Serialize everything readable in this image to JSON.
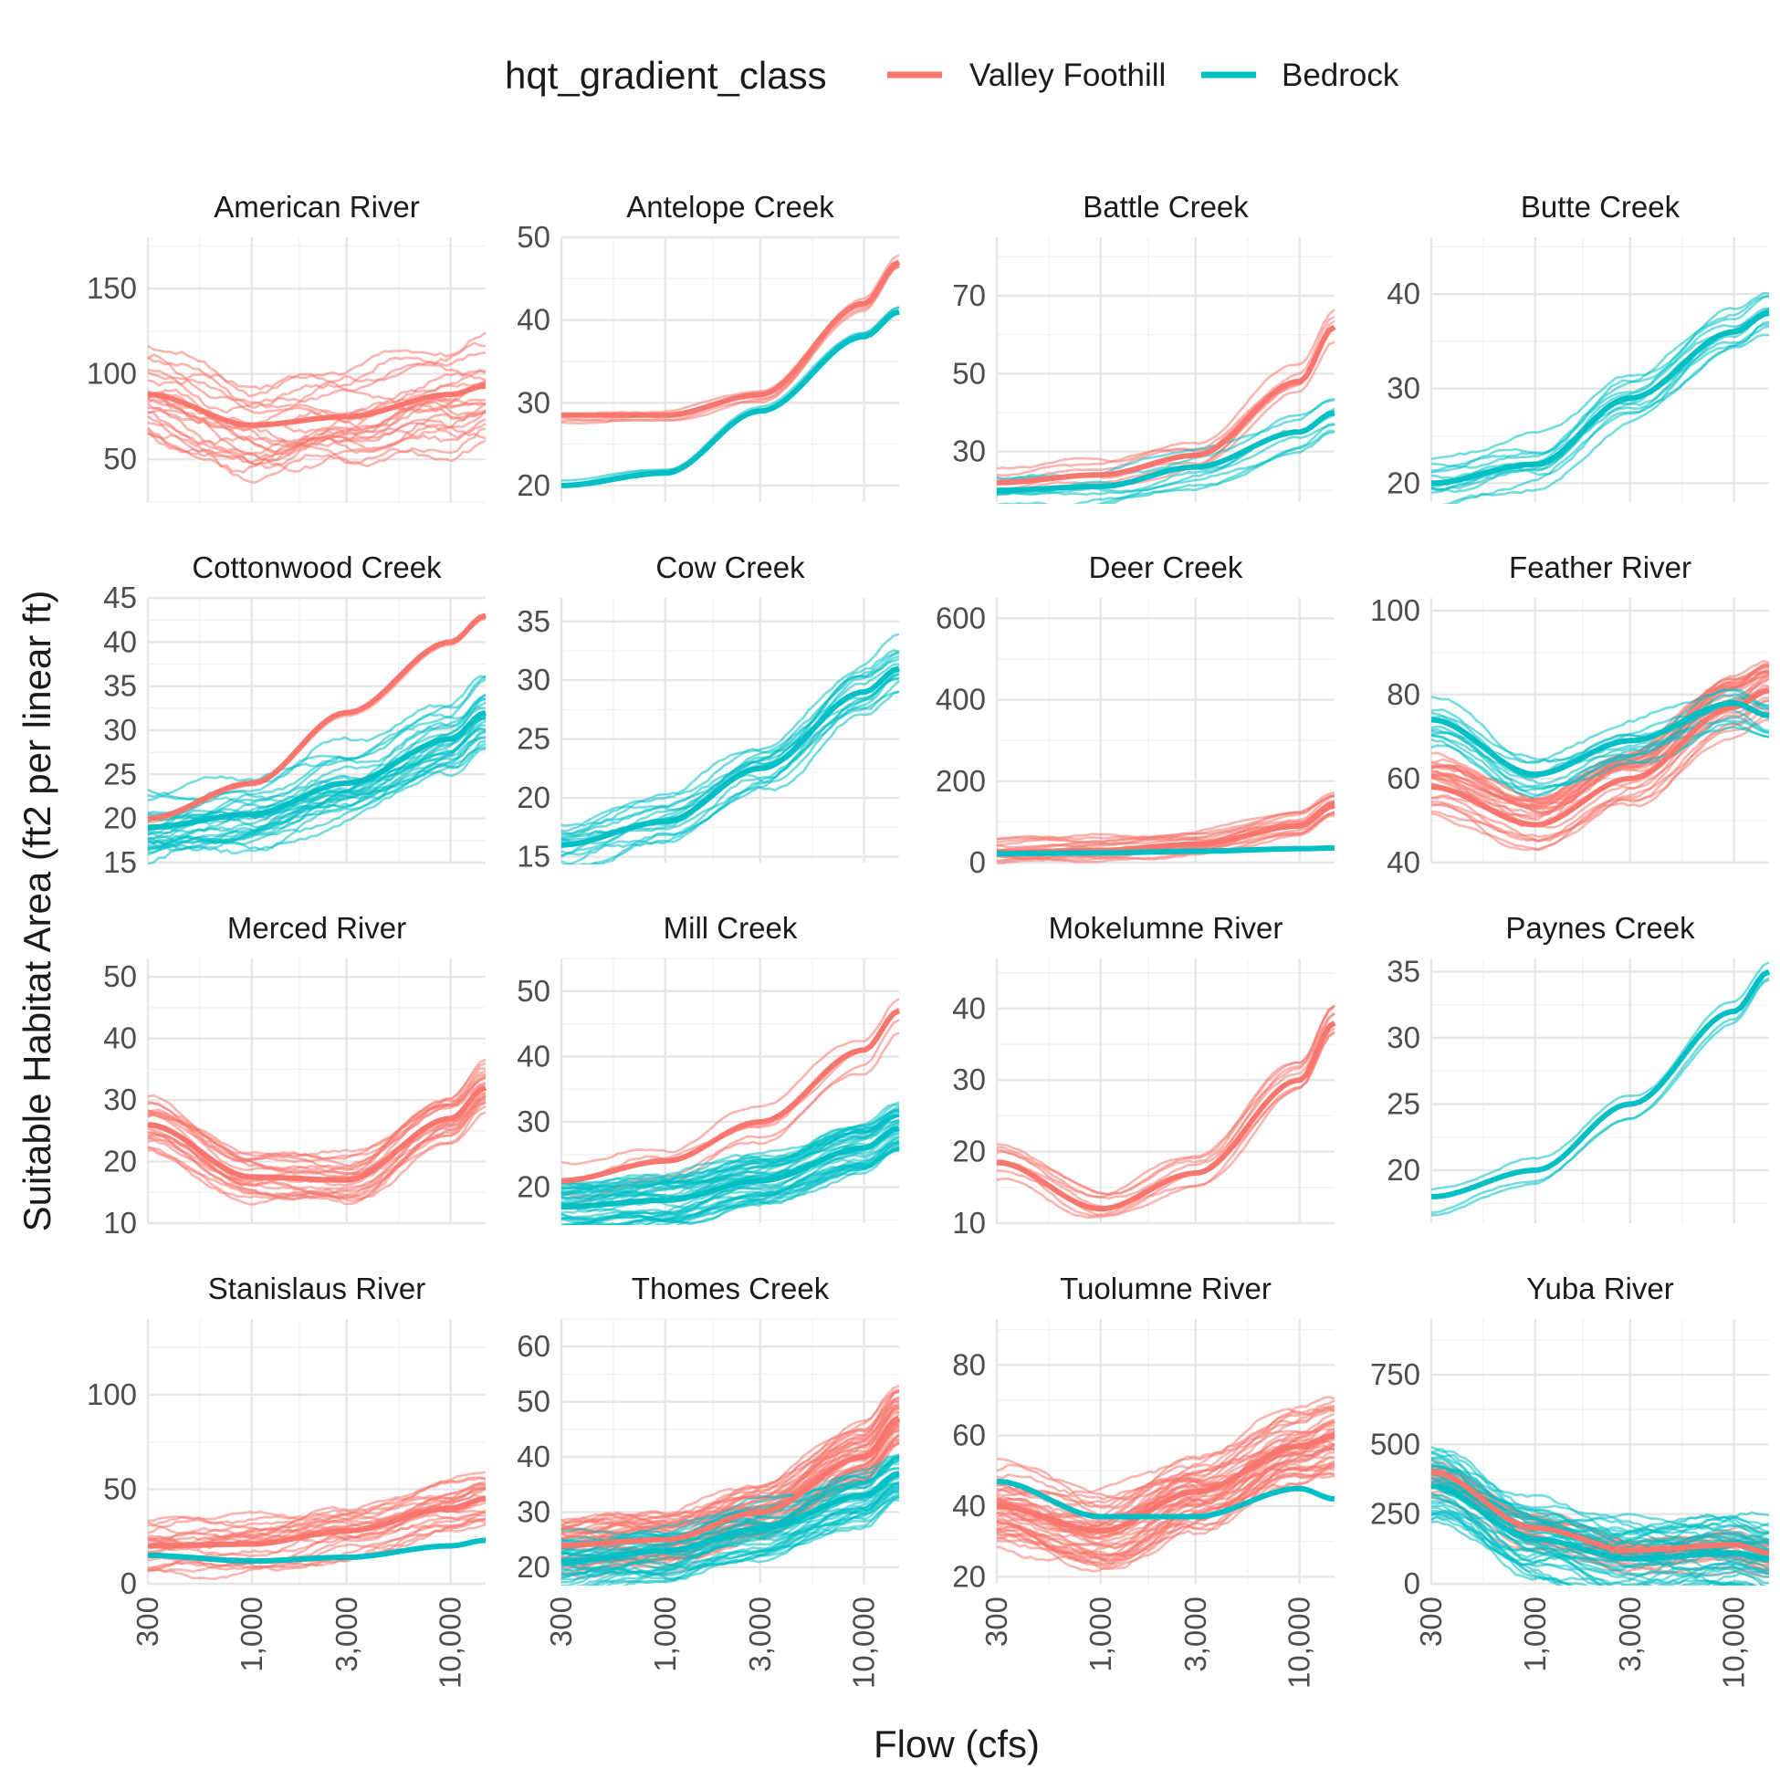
{
  "chart_data": {
    "type": "line",
    "xlabel": "Flow (cfs)",
    "ylabel": "Suitable Habitat Area (ft2 per linear ft)",
    "x_scale": "log10",
    "xlim": [
      300,
      15000
    ],
    "x_ticks": [
      300,
      1000,
      3000,
      10000
    ],
    "x_tick_labels": [
      "300",
      "1,000",
      "3,000",
      "10,000"
    ],
    "legend": {
      "title": "hqt_gradient_class",
      "position": "top",
      "entries": [
        {
          "label": "Valley Foothill",
          "color": "#F8766D"
        },
        {
          "label": "Bedrock",
          "color": "#00BFC4"
        }
      ]
    },
    "smooth_x": [
      300,
      1000,
      3000,
      10000,
      15000
    ],
    "facets": [
      {
        "title": "American River",
        "ylim": [
          25,
          180
        ],
        "y_ticks": [
          50,
          100,
          150
        ],
        "series": [
          {
            "class": "Valley Foothill",
            "y": [
              88,
              70,
              75,
              88,
              93
            ],
            "n": 22,
            "spread": 28
          }
        ]
      },
      {
        "title": "Antelope Creek",
        "ylim": [
          18,
          50
        ],
        "y_ticks": [
          20,
          30,
          40,
          50
        ],
        "series": [
          {
            "class": "Valley Foothill",
            "y": [
              28.5,
              28.5,
              31,
              42,
              47
            ],
            "n": 4,
            "spread": 1
          },
          {
            "class": "Bedrock",
            "y": [
              20,
              21.5,
              29,
              38,
              41
            ],
            "n": 3,
            "spread": 0.6
          }
        ]
      },
      {
        "title": "Battle Creek",
        "ylim": [
          17,
          85
        ],
        "y_ticks": [
          30,
          50,
          70
        ],
        "series": [
          {
            "class": "Valley Foothill",
            "y": [
              22,
              24,
              29,
              48,
              62
            ],
            "n": 6,
            "spread": 4
          },
          {
            "class": "Bedrock",
            "y": [
              20,
              21,
              26,
              35,
              40
            ],
            "n": 8,
            "spread": 5
          }
        ]
      },
      {
        "title": "Butte Creek",
        "ylim": [
          18,
          46
        ],
        "y_ticks": [
          20,
          30,
          40
        ],
        "series": [
          {
            "class": "Bedrock",
            "y": [
              20,
              22,
              29,
              36,
              38
            ],
            "n": 12,
            "spread": 2.5
          }
        ]
      },
      {
        "title": "Cottonwood Creek",
        "ylim": [
          15,
          45
        ],
        "y_ticks": [
          15,
          20,
          25,
          30,
          35,
          40,
          45
        ],
        "series": [
          {
            "class": "Valley Foothill",
            "y": [
              20,
              24,
              32,
              40,
              43
            ],
            "n": 3,
            "spread": 0.5
          },
          {
            "class": "Bedrock",
            "y": [
              19,
              20.5,
              24,
              29,
              32
            ],
            "n": 28,
            "spread": 4
          }
        ]
      },
      {
        "title": "Cow Creek",
        "ylim": [
          14.5,
          37
        ],
        "y_ticks": [
          15,
          20,
          25,
          30,
          35
        ],
        "series": [
          {
            "class": "Bedrock",
            "y": [
              16,
              18,
              22.5,
              29,
              31
            ],
            "n": 16,
            "spread": 2.5
          }
        ]
      },
      {
        "title": "Deer Creek",
        "ylim": [
          0,
          650
        ],
        "y_ticks": [
          0,
          200,
          400,
          600
        ],
        "series": [
          {
            "class": "Valley Foothill",
            "y": [
              25,
              30,
              45,
              90,
              140
            ],
            "n": 16,
            "spread": 30
          },
          {
            "class": "Bedrock",
            "y": [
              22,
              24,
              28,
              34,
              36
            ],
            "n": 6,
            "spread": 6
          }
        ]
      },
      {
        "title": "Feather River",
        "ylim": [
          40,
          103
        ],
        "y_ticks": [
          40,
          60,
          80,
          100
        ],
        "series": [
          {
            "class": "Valley Foothill",
            "y": [
              58,
              49,
              60,
              77,
              81
            ],
            "n": 28,
            "spread": 6
          },
          {
            "class": "Bedrock",
            "y": [
              74,
              61,
              69,
              78,
              75
            ],
            "n": 12,
            "spread": 6
          }
        ]
      },
      {
        "title": "Merced River",
        "ylim": [
          10,
          53
        ],
        "y_ticks": [
          10,
          20,
          30,
          40,
          50
        ],
        "series": [
          {
            "class": "Valley Foothill",
            "y": [
              26,
              17.5,
              17,
              27,
              32
            ],
            "n": 22,
            "spread": 4
          }
        ]
      },
      {
        "title": "Mill Creek",
        "ylim": [
          14.5,
          55
        ],
        "y_ticks": [
          20,
          30,
          40,
          50
        ],
        "series": [
          {
            "class": "Valley Foothill",
            "y": [
              21,
              24,
              30,
              41,
              47
            ],
            "n": 5,
            "spread": 3
          },
          {
            "class": "Bedrock",
            "y": [
              17,
              18,
              21,
              26,
              29
            ],
            "n": 40,
            "spread": 3.5
          }
        ]
      },
      {
        "title": "Mokelumne River",
        "ylim": [
          10,
          47
        ],
        "y_ticks": [
          10,
          20,
          30,
          40
        ],
        "series": [
          {
            "class": "Valley Foothill",
            "y": [
              18.5,
              12,
              17,
              30,
              38
            ],
            "n": 8,
            "spread": 2.5
          }
        ]
      },
      {
        "title": "Paynes Creek",
        "ylim": [
          16,
          36
        ],
        "y_ticks": [
          20,
          25,
          30,
          35
        ],
        "series": [
          {
            "class": "Bedrock",
            "y": [
              18,
              20,
              25,
              32,
              35
            ],
            "n": 3,
            "spread": 1
          }
        ]
      },
      {
        "title": "Stanislaus River",
        "ylim": [
          0,
          140
        ],
        "y_ticks": [
          0,
          50,
          100
        ],
        "series": [
          {
            "class": "Valley Foothill",
            "y": [
              20,
              21,
              28,
              40,
              45
            ],
            "n": 24,
            "spread": 15
          },
          {
            "class": "Bedrock",
            "y": [
              15,
              12,
              14,
              20,
              23
            ],
            "n": 1,
            "spread": 0
          }
        ]
      },
      {
        "title": "Thomes Creek",
        "ylim": [
          17,
          65
        ],
        "y_ticks": [
          20,
          30,
          40,
          50,
          60
        ],
        "series": [
          {
            "class": "Valley Foothill",
            "y": [
              24,
              25,
              30,
              40,
              47
            ],
            "n": 40,
            "spread": 5
          },
          {
            "class": "Bedrock",
            "y": [
              21,
              23,
              27,
              33,
              37
            ],
            "n": 36,
            "spread": 5
          }
        ]
      },
      {
        "title": "Tuolumne River",
        "ylim": [
          18,
          93
        ],
        "y_ticks": [
          20,
          40,
          60,
          80
        ],
        "series": [
          {
            "class": "Valley Foothill",
            "y": [
              40,
              33,
              44,
              57,
              60
            ],
            "n": 45,
            "spread": 10
          },
          {
            "class": "Bedrock",
            "y": [
              47,
              37,
              37,
              45,
              42
            ],
            "n": 1,
            "spread": 0
          }
        ]
      },
      {
        "title": "Yuba River",
        "ylim": [
          0,
          950
        ],
        "y_ticks": [
          0,
          250,
          500,
          750
        ],
        "series": [
          {
            "class": "Valley Foothill",
            "y": [
              400,
              200,
              120,
              140,
              110
            ],
            "n": 24,
            "spread": 80
          },
          {
            "class": "Bedrock",
            "y": [
              350,
              160,
              90,
              110,
              90
            ],
            "n": 40,
            "spread": 130
          }
        ]
      }
    ]
  }
}
